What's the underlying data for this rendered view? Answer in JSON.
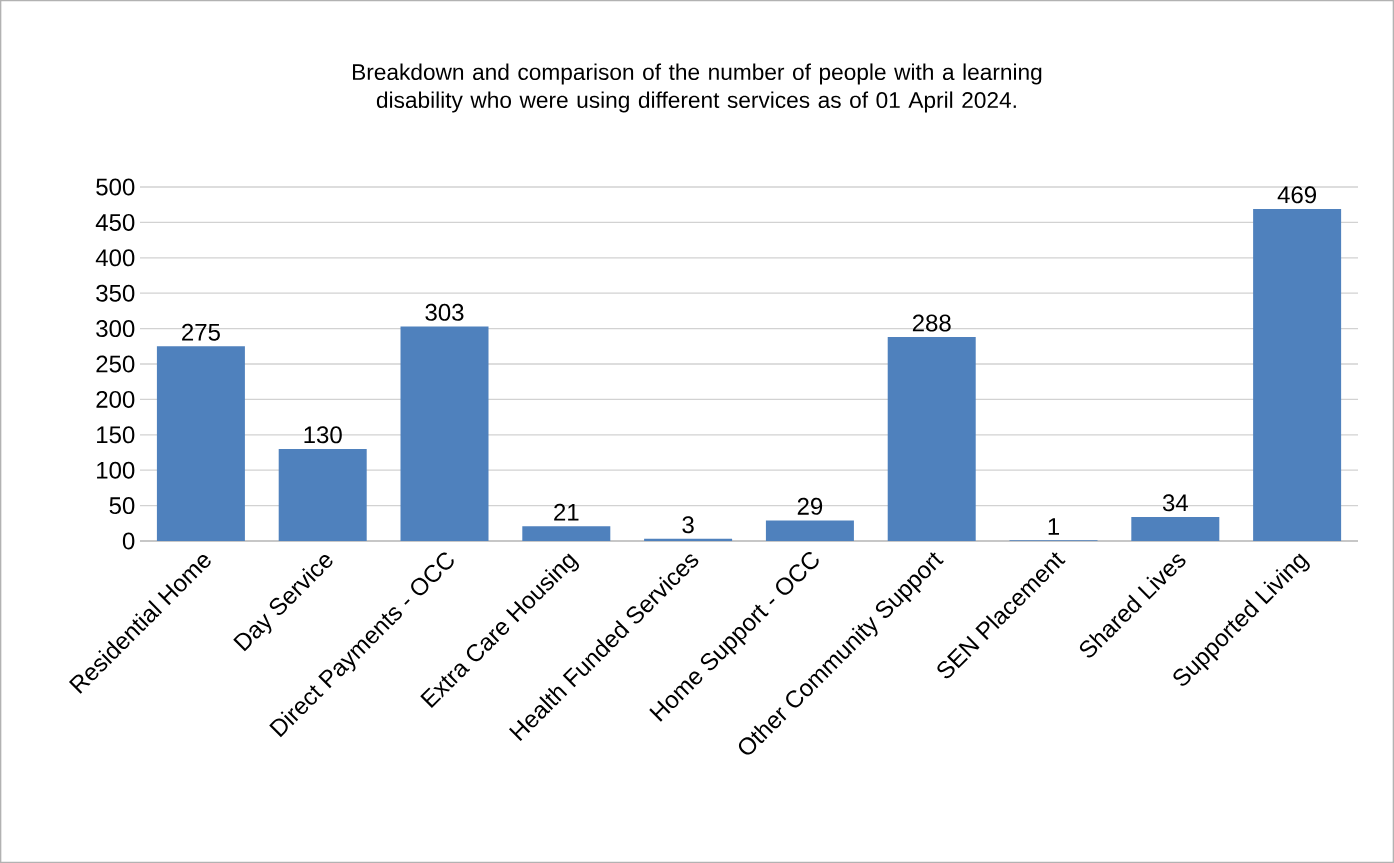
{
  "chart_data": {
    "type": "bar",
    "title": "Breakdown and comparison of the number of people with a learning disability who were using different services as of 01 April 2024.",
    "categories": [
      "Residential Home",
      "Day Service",
      "Direct Payments - OCC",
      "Extra Care Housing",
      "Health Funded Services",
      "Home Support - OCC",
      "Other Community Support",
      "SEN Placement",
      "Shared Lives",
      "Supported Living"
    ],
    "values": [
      275,
      130,
      303,
      21,
      3,
      29,
      288,
      1,
      34,
      469
    ],
    "color": "#4f81bd",
    "ylim": [
      0,
      500
    ],
    "yticks": [
      0,
      50,
      100,
      150,
      200,
      250,
      300,
      350,
      400,
      450,
      500
    ],
    "grid": "y",
    "data_labels": true
  }
}
